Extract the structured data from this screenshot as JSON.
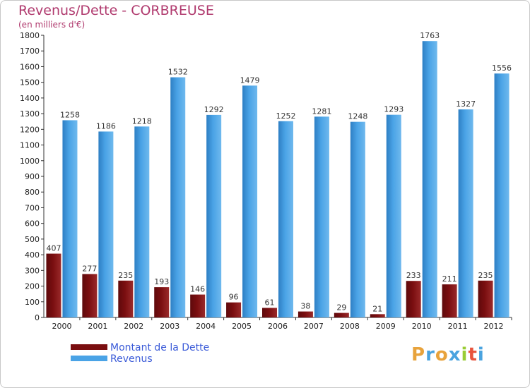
{
  "title": "Revenus/Dette - CORBREUSE",
  "subtitle": "(en milliers d'€)",
  "logo": {
    "letters": [
      "P",
      "r",
      "o",
      "x",
      "i",
      "t",
      "i"
    ],
    "colors": [
      "#e8a33c",
      "#4aa3df",
      "#e8a33c",
      "#4aa3df",
      "#9c3",
      "#e8533c",
      "#4aa3df"
    ]
  },
  "chart_data": {
    "type": "bar",
    "categories": [
      "2000",
      "2001",
      "2002",
      "2003",
      "2004",
      "2005",
      "2006",
      "2007",
      "2008",
      "2009",
      "2010",
      "2011",
      "2012"
    ],
    "series": [
      {
        "name": "Montant de la Dette",
        "color": "#7a0e10",
        "values": [
          407,
          277,
          235,
          193,
          146,
          96,
          61,
          38,
          29,
          21,
          233,
          211,
          235
        ]
      },
      {
        "name": "Revenus",
        "color": "#4aa3e6",
        "values": [
          1258,
          1186,
          1218,
          1532,
          1292,
          1479,
          1252,
          1281,
          1248,
          1293,
          1763,
          1327,
          1556
        ]
      }
    ],
    "yticks": [
      0,
      100,
      200,
      300,
      400,
      500,
      600,
      700,
      800,
      900,
      1000,
      1100,
      1200,
      1300,
      1400,
      1500,
      1600,
      1700,
      1800
    ],
    "ylim": [
      0,
      1800
    ],
    "grid": false,
    "legend": "bottom-left"
  }
}
